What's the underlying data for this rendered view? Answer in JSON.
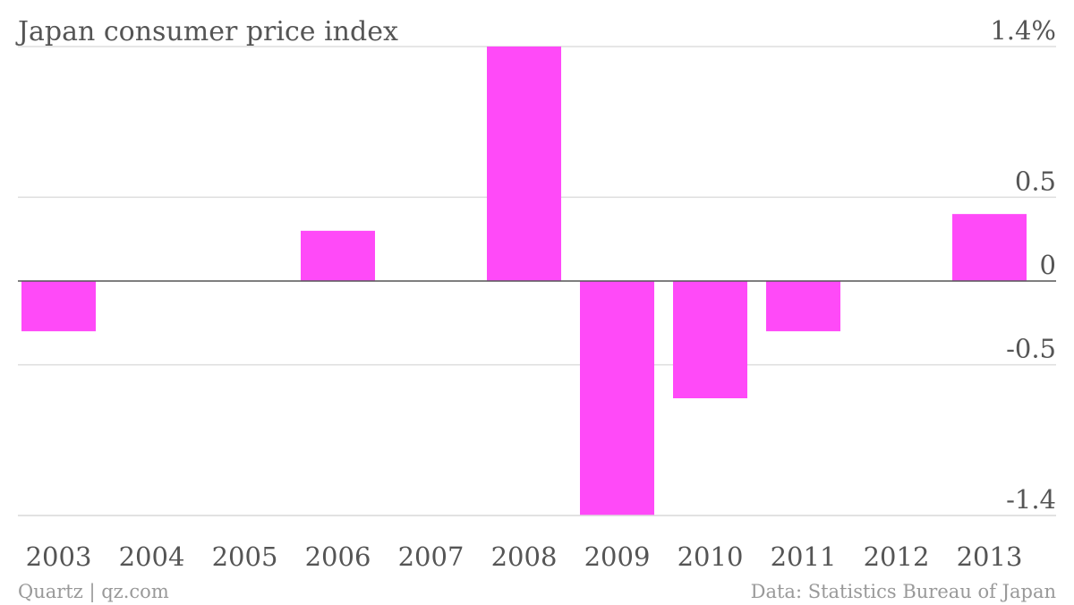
{
  "chart_data": {
    "type": "bar",
    "title": "Japan consumer price index",
    "categories": [
      "2003",
      "2004",
      "2005",
      "2006",
      "2007",
      "2008",
      "2009",
      "2010",
      "2011",
      "2012",
      "2013"
    ],
    "values": [
      -0.3,
      0.0,
      0.0,
      0.3,
      0.0,
      1.4,
      -1.4,
      -0.7,
      -0.3,
      0.0,
      0.4
    ],
    "ylim": [
      -1.4,
      1.4
    ],
    "yticks": [
      {
        "value": 1.4,
        "label": "1.4%"
      },
      {
        "value": 0.5,
        "label": "0.5"
      },
      {
        "value": 0,
        "label": "0"
      },
      {
        "value": -0.5,
        "label": "-0.5"
      },
      {
        "value": -1.4,
        "label": "-1.4"
      }
    ],
    "grid": true,
    "bar_color": "#ff4af8",
    "source": "Data: Statistics Bureau of Japan",
    "credit": "Quartz | qz.com"
  }
}
